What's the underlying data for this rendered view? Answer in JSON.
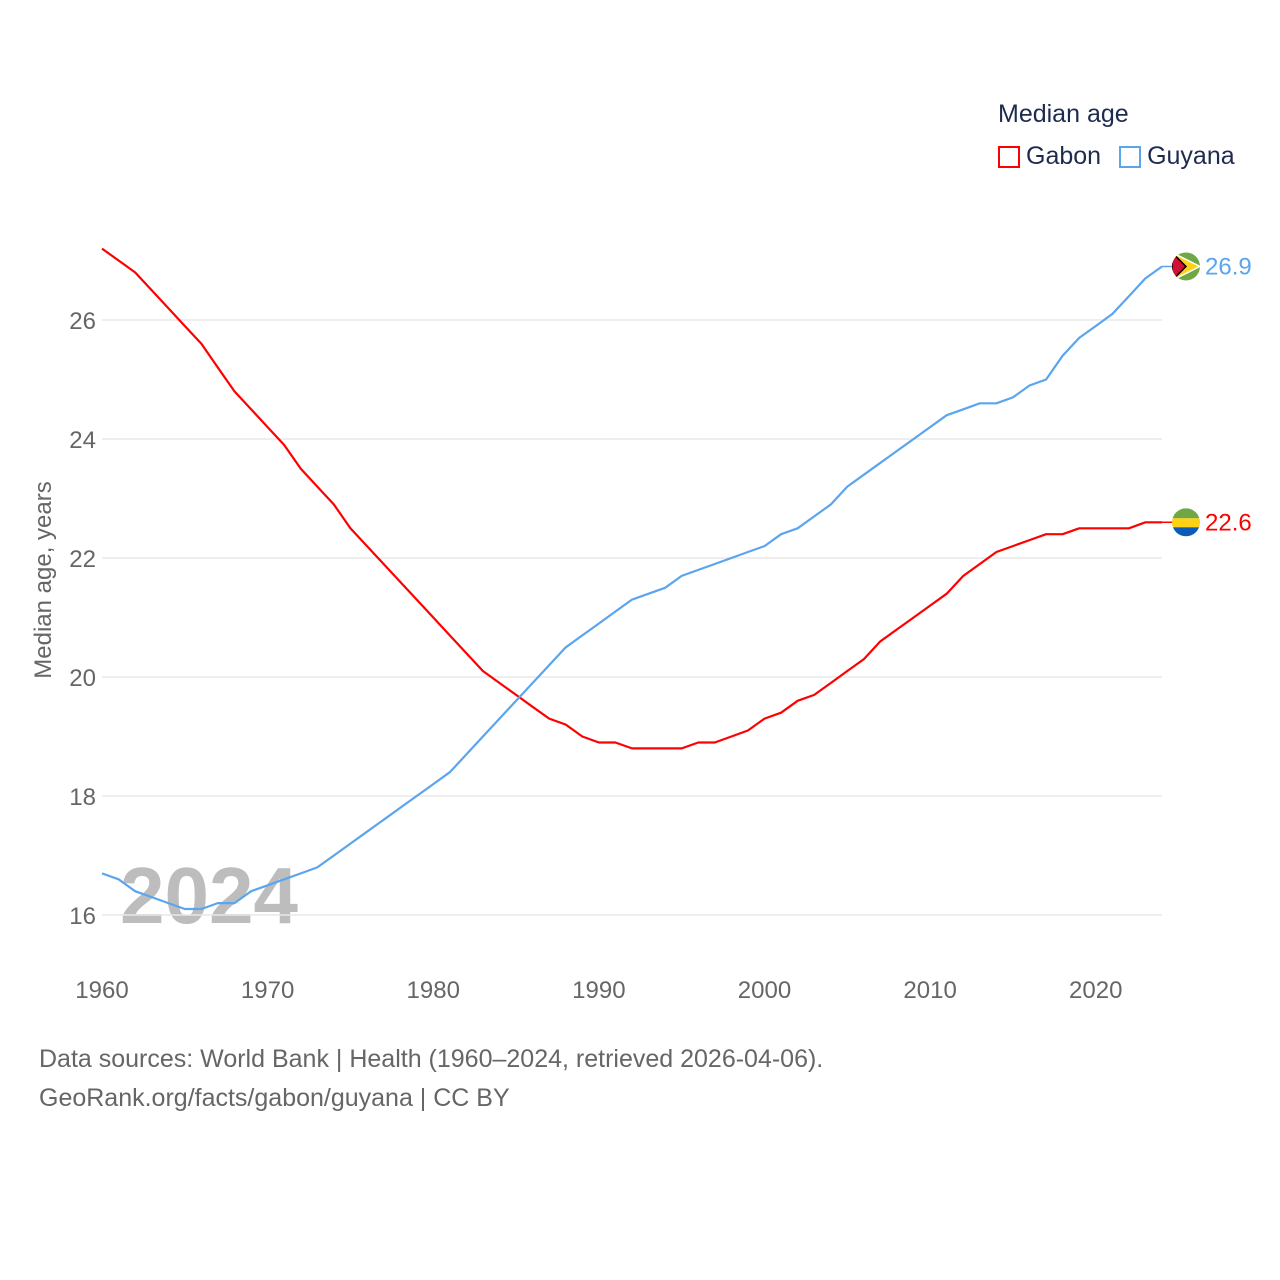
{
  "legend": {
    "title": "Median age",
    "items": [
      {
        "name": "Gabon",
        "color": "#ff0000"
      },
      {
        "name": "Guyana",
        "color": "#5aa5ee"
      }
    ]
  },
  "watermark_year": "2024",
  "footer": {
    "line1": "Data sources: World Bank | Health (1960–2024, retrieved 2026-04-06).",
    "line2": "GeoRank.org/facts/gabon/guyana | CC BY"
  },
  "chart_data": {
    "type": "line",
    "title": "Median age",
    "xlabel": "",
    "ylabel": "Median age, years",
    "xlim": [
      1960,
      2024
    ],
    "ylim": [
      15.5,
      27.5
    ],
    "xticks": [
      1960,
      1970,
      1980,
      1990,
      2000,
      2010,
      2020
    ],
    "yticks": [
      16,
      18,
      20,
      22,
      24,
      26
    ],
    "grid": true,
    "legend_position": "top-right",
    "x_start": 1960,
    "series": [
      {
        "name": "Gabon",
        "color": "#ff0000",
        "end_label": "22.6",
        "flag": "gabon-flag",
        "values": [
          27.2,
          27.0,
          26.8,
          26.5,
          26.2,
          25.9,
          25.6,
          25.2,
          24.8,
          24.5,
          24.2,
          23.9,
          23.5,
          23.2,
          22.9,
          22.5,
          22.2,
          21.9,
          21.6,
          21.3,
          21.0,
          20.7,
          20.4,
          20.1,
          19.9,
          19.7,
          19.5,
          19.3,
          19.2,
          19.0,
          18.9,
          18.9,
          18.8,
          18.8,
          18.8,
          18.8,
          18.9,
          18.9,
          19.0,
          19.1,
          19.3,
          19.4,
          19.6,
          19.7,
          19.9,
          20.1,
          20.3,
          20.6,
          20.8,
          21.0,
          21.2,
          21.4,
          21.7,
          21.9,
          22.1,
          22.2,
          22.3,
          22.4,
          22.4,
          22.5,
          22.5,
          22.5,
          22.5,
          22.6,
          22.6
        ]
      },
      {
        "name": "Guyana",
        "color": "#5aa5ee",
        "end_label": "26.9",
        "flag": "guyana-flag",
        "values": [
          16.7,
          16.6,
          16.4,
          16.3,
          16.2,
          16.1,
          16.1,
          16.2,
          16.2,
          16.4,
          16.5,
          16.6,
          16.7,
          16.8,
          17.0,
          17.2,
          17.4,
          17.6,
          17.8,
          18.0,
          18.2,
          18.4,
          18.7,
          19.0,
          19.3,
          19.6,
          19.9,
          20.2,
          20.5,
          20.7,
          20.9,
          21.1,
          21.3,
          21.4,
          21.5,
          21.7,
          21.8,
          21.9,
          22.0,
          22.1,
          22.2,
          22.4,
          22.5,
          22.7,
          22.9,
          23.2,
          23.4,
          23.6,
          23.8,
          24.0,
          24.2,
          24.4,
          24.5,
          24.6,
          24.6,
          24.7,
          24.9,
          25.0,
          25.4,
          25.7,
          25.9,
          26.1,
          26.4,
          26.7,
          26.9
        ]
      }
    ]
  }
}
